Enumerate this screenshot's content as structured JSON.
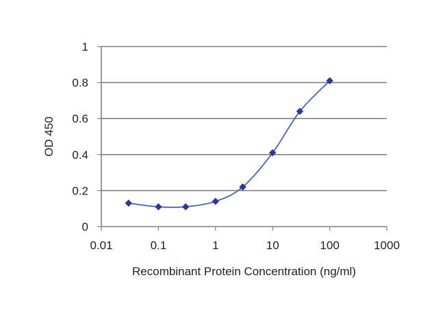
{
  "chart_data": {
    "type": "line",
    "xlabel": "Recombinant Protein Concentration (ng/ml)",
    "ylabel": "OD 450",
    "xscale": "log",
    "xlim": [
      0.01,
      1000
    ],
    "ylim": [
      0,
      1
    ],
    "x_tick_labels": [
      "0.01",
      "0.1",
      "1",
      "10",
      "100",
      "1000"
    ],
    "y_tick_labels": [
      "0",
      "0.2",
      "0.4",
      "0.6",
      "0.8",
      "1"
    ],
    "grid": "horizontal",
    "legend": "none",
    "series": [
      {
        "x": [
          0.03,
          0.1,
          0.3,
          1,
          3,
          10,
          30,
          100
        ],
        "values": [
          0.13,
          0.11,
          0.11,
          0.14,
          0.22,
          0.41,
          0.64,
          0.81
        ]
      }
    ],
    "colors": {
      "line": "#4a5fb5",
      "marker": "#2a3a96",
      "grid": "#808080",
      "axis": "#808080"
    }
  }
}
